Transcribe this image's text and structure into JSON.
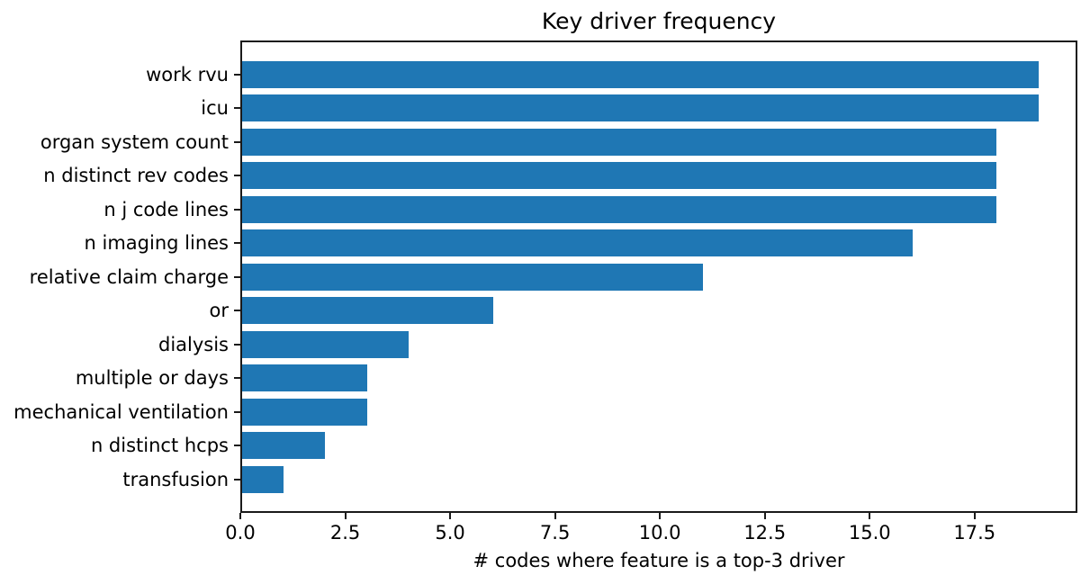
{
  "figure": {
    "background_color": "#ffffff",
    "text_color": "#000000",
    "spine_color": "#1a1a1a"
  },
  "chart_data": {
    "type": "bar",
    "orientation": "horizontal",
    "title": "Key driver frequency",
    "xlabel": "# codes where feature is a top-3 driver",
    "ylabel": "",
    "categories": [
      "work rvu",
      "icu",
      "organ system count",
      "n distinct rev codes",
      "n j code lines",
      "n imaging lines",
      "relative claim charge",
      "or",
      "dialysis",
      "multiple or days",
      "mechanical ventilation",
      "n distinct hcps",
      "transfusion"
    ],
    "values": [
      19,
      19,
      18,
      18,
      18,
      16,
      11,
      6,
      4,
      3,
      3,
      2,
      1
    ],
    "bar_color": "#1f77b4",
    "xlim": [
      0,
      19.95
    ],
    "xticks": [
      0.0,
      2.5,
      5.0,
      7.5,
      10.0,
      12.5,
      15.0,
      17.5
    ],
    "xtick_labels": [
      "0.0",
      "2.5",
      "5.0",
      "7.5",
      "10.0",
      "12.5",
      "15.0",
      "17.5"
    ],
    "grid": false,
    "legend_position": "none"
  }
}
